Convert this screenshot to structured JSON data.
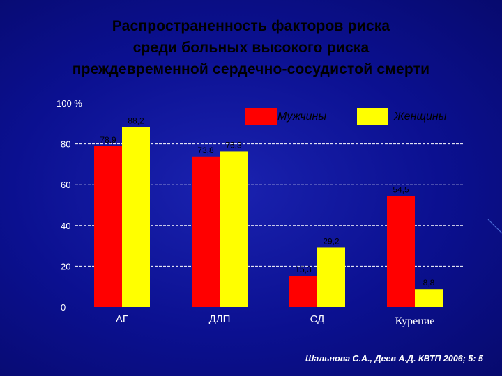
{
  "title": {
    "line1": "Распространенность факторов риска",
    "line2": "среди больных высокого  риска",
    "line3": "преждевременной сердечно-сосудистой смерти"
  },
  "source": "Шальнова С.А., Деев А.Д. КВТП 2006; 5: 5",
  "colors": {
    "background": "#0b1090",
    "men": "#ff0000",
    "women": "#ffff00",
    "title_text": "#000000",
    "axis_text": "#ffffff"
  },
  "chart_data": {
    "type": "bar",
    "title": "Распространенность факторов риска среди больных высокого  риска преждевременной сердечно-сосудистой смерти",
    "ylabel": "%",
    "ylim": [
      0,
      100
    ],
    "yticks": [
      "100 %",
      "80",
      "60",
      "40",
      "20",
      "0"
    ],
    "ytick_values": [
      100,
      80,
      60,
      40,
      20,
      0
    ],
    "grid": true,
    "legend_position": "top-right",
    "categories": [
      "АГ",
      "ДЛП",
      "СД",
      "Курение"
    ],
    "series": [
      {
        "name": "Мужчины",
        "values": [
          78.9,
          73.8,
          15.3,
          54.5
        ],
        "labels": [
          "78,9",
          "73,8",
          "15,3",
          "54,5"
        ]
      },
      {
        "name": "Женщины",
        "values": [
          88.2,
          76.3,
          29.2,
          8.8
        ],
        "labels": [
          "88,2",
          "76,3",
          "29,2",
          "8,8"
        ]
      }
    ]
  }
}
